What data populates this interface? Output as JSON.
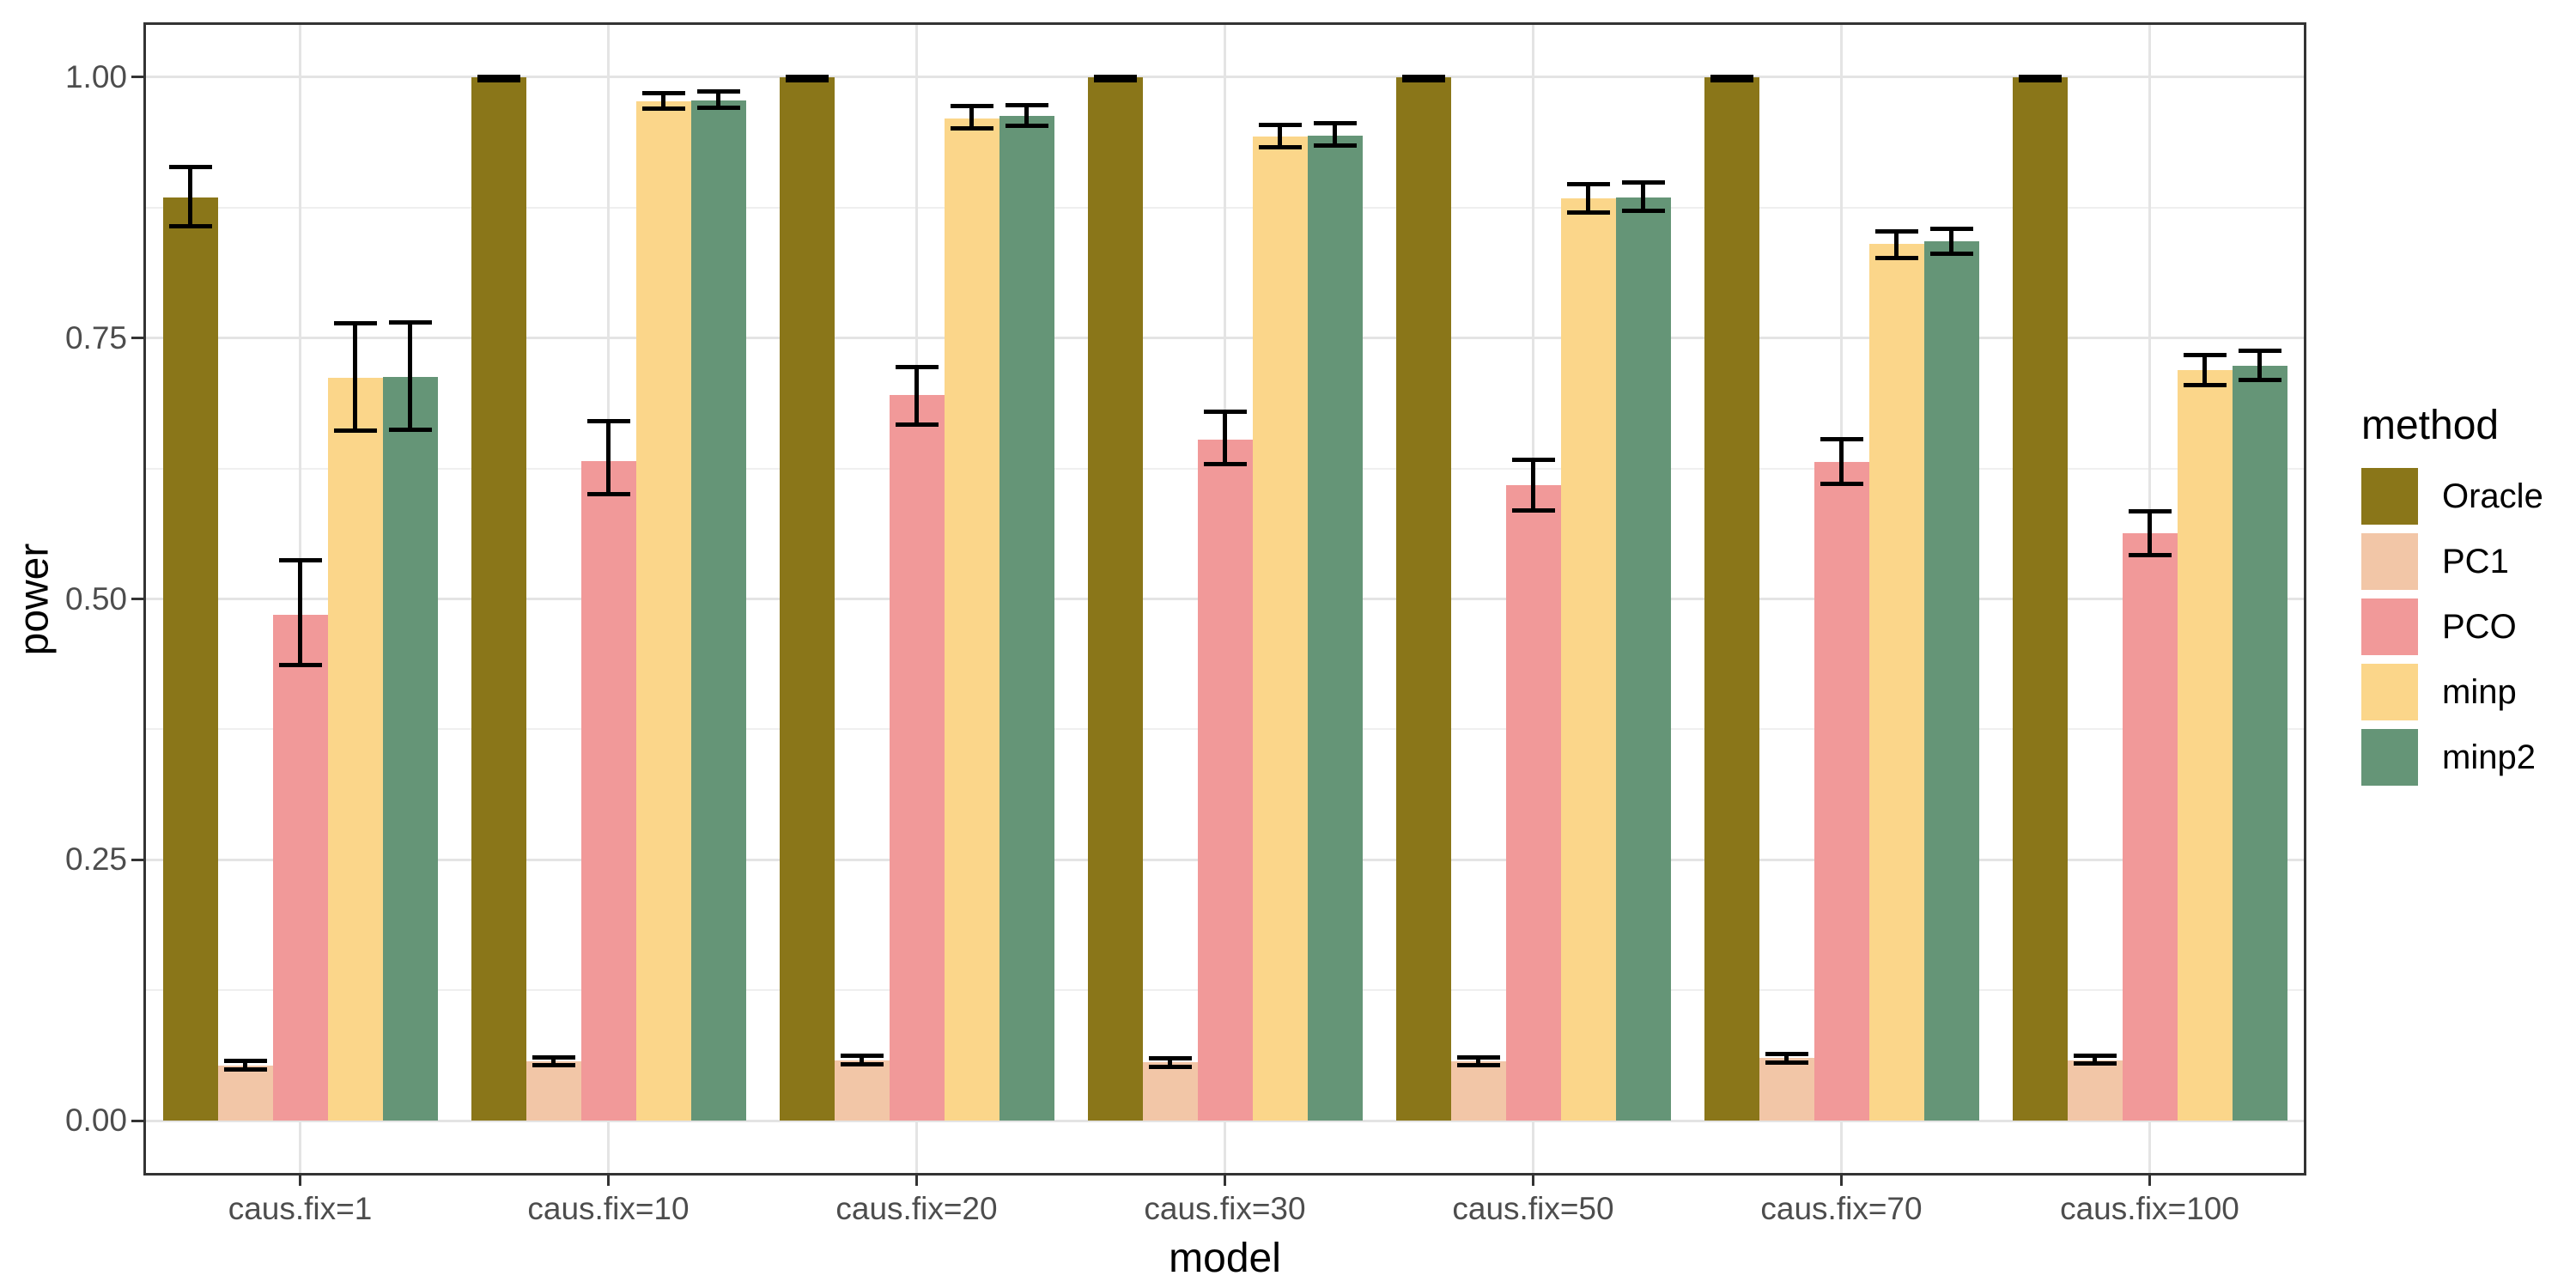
{
  "figure": {
    "y_axis": {
      "title": "power",
      "tick_labels": [
        "1.00",
        "0.75",
        "0.50",
        "0.25",
        "0.00"
      ],
      "tick_values": [
        1.0,
        0.75,
        0.5,
        0.25,
        0.0
      ],
      "minor_values": [
        0.875,
        0.625,
        0.375,
        0.125
      ]
    },
    "x_axis": {
      "title": "model"
    },
    "legend": {
      "title": "method",
      "position": "right"
    }
  },
  "chart_data": {
    "type": "bar",
    "title": "",
    "xlabel": "model",
    "ylabel": "power",
    "ylim": [
      0,
      1
    ],
    "expansion": 0.05,
    "grid": "on",
    "legend_position": "right",
    "error_bars": true,
    "categories": [
      "caus.fix=1",
      "caus.fix=10",
      "caus.fix=20",
      "caus.fix=30",
      "caus.fix=50",
      "caus.fix=70",
      "caus.fix=100"
    ],
    "series": [
      {
        "name": "Oracle",
        "color": "#8A7619",
        "values": [
          0.885,
          1.0,
          1.0,
          1.0,
          1.0,
          1.0,
          1.0
        ],
        "ci_low": [
          0.857,
          0.997,
          0.997,
          0.997,
          0.997,
          0.997,
          0.997
        ],
        "ci_high": [
          0.914,
          1.0,
          1.0,
          1.0,
          1.0,
          1.0,
          1.0
        ]
      },
      {
        "name": "PC1",
        "color": "#F2C6A7",
        "values": [
          0.053,
          0.057,
          0.058,
          0.056,
          0.057,
          0.06,
          0.058
        ],
        "ci_low": [
          0.049,
          0.053,
          0.054,
          0.052,
          0.053,
          0.056,
          0.055
        ],
        "ci_high": [
          0.057,
          0.061,
          0.062,
          0.06,
          0.061,
          0.064,
          0.062
        ]
      },
      {
        "name": "PCO",
        "color": "#F19999",
        "values": [
          0.485,
          0.632,
          0.695,
          0.653,
          0.609,
          0.631,
          0.563
        ],
        "ci_low": [
          0.437,
          0.6,
          0.667,
          0.629,
          0.585,
          0.61,
          0.542
        ],
        "ci_high": [
          0.537,
          0.67,
          0.722,
          0.679,
          0.633,
          0.653,
          0.584
        ]
      },
      {
        "name": "minp",
        "color": "#FBD68A",
        "values": [
          0.712,
          0.977,
          0.96,
          0.943,
          0.884,
          0.84,
          0.719
        ],
        "ci_low": [
          0.661,
          0.97,
          0.951,
          0.933,
          0.87,
          0.827,
          0.705
        ],
        "ci_high": [
          0.764,
          0.985,
          0.972,
          0.954,
          0.897,
          0.852,
          0.734
        ]
      },
      {
        "name": "minp2",
        "color": "#659577",
        "values": [
          0.713,
          0.978,
          0.963,
          0.944,
          0.885,
          0.843,
          0.723
        ],
        "ci_low": [
          0.662,
          0.971,
          0.953,
          0.934,
          0.872,
          0.831,
          0.71
        ],
        "ci_high": [
          0.765,
          0.986,
          0.973,
          0.956,
          0.899,
          0.855,
          0.738
        ]
      }
    ]
  }
}
